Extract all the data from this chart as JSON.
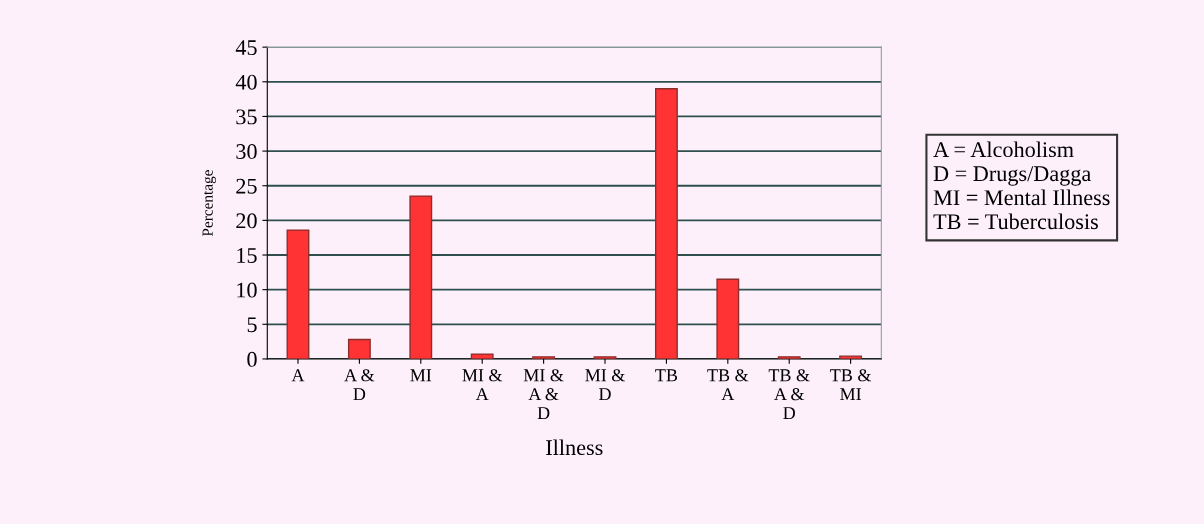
{
  "chart_data": {
    "type": "bar",
    "xlabel": "Illness",
    "ylabel": "Percentage",
    "categories": [
      "A",
      "A &\nD",
      "MI",
      "MI &\nA",
      "MI &\nA &\nD",
      "MI &\nD",
      "TB",
      "TB &\nA",
      "TB &\nA &\nD",
      "TB &\nMI"
    ],
    "values": [
      18.6,
      2.8,
      23.5,
      0.7,
      0.3,
      0.3,
      39,
      11.5,
      0.3,
      0.4
    ],
    "color": "#ff3333",
    "ylim": [
      0,
      45
    ],
    "yticks": [
      0,
      5,
      10,
      15,
      20,
      25,
      30,
      35,
      40,
      45
    ],
    "grid": "y",
    "annotations": [
      "A = Alcoholism\nD = Drugs/Dagga\nMI = Mental Illness\nTB = Tuberculosis"
    ]
  }
}
